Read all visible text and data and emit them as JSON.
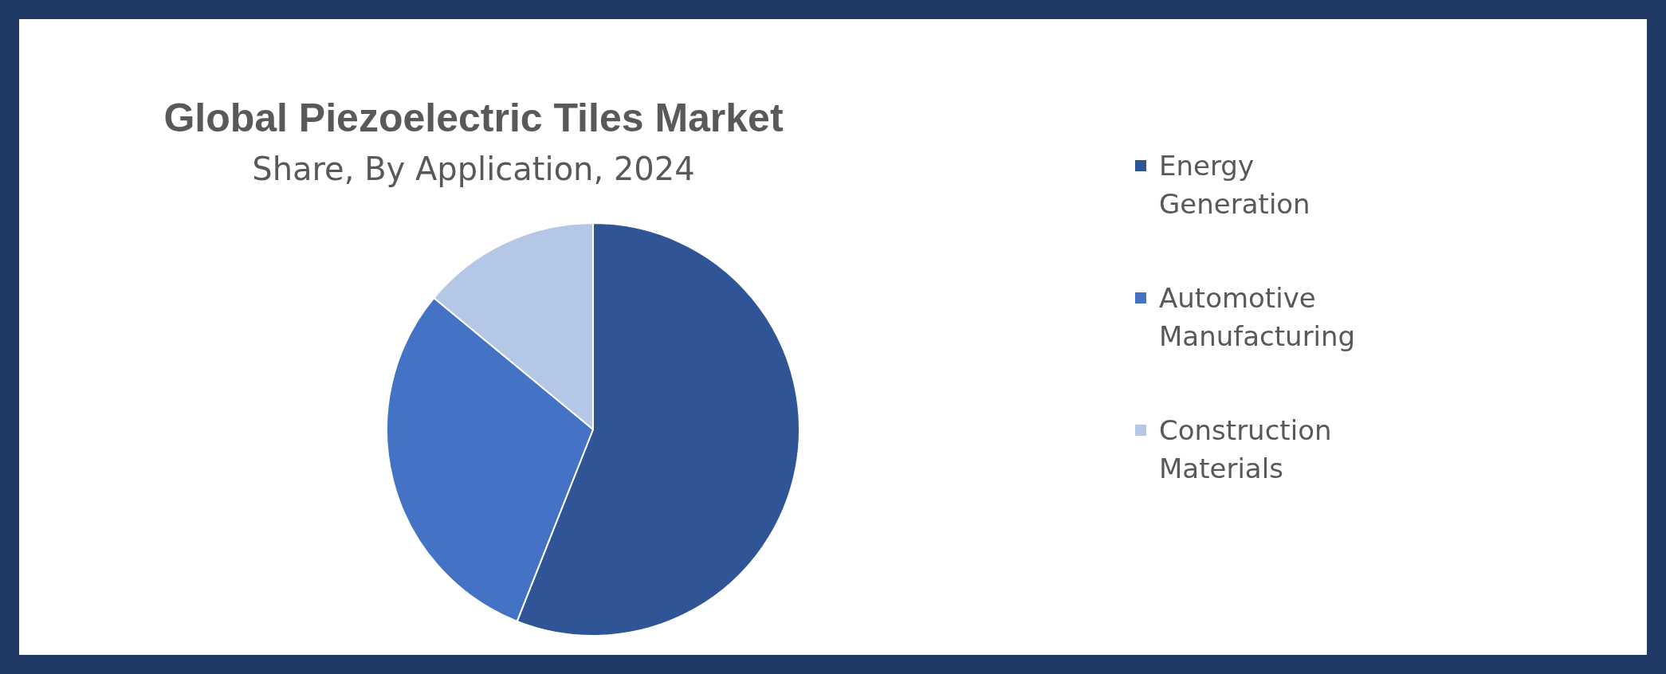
{
  "chart_data": {
    "type": "pie",
    "title": "Global Piezoelectric Tiles Market",
    "subtitle": "Share, By Application, 2024",
    "categories": [
      "Energy Generation",
      "Automotive Manufacturing",
      "Construction Materials"
    ],
    "values": [
      56,
      30,
      14
    ],
    "colors": [
      "#2f5597",
      "#4472c4",
      "#b4c7e7"
    ],
    "legend": "right"
  }
}
